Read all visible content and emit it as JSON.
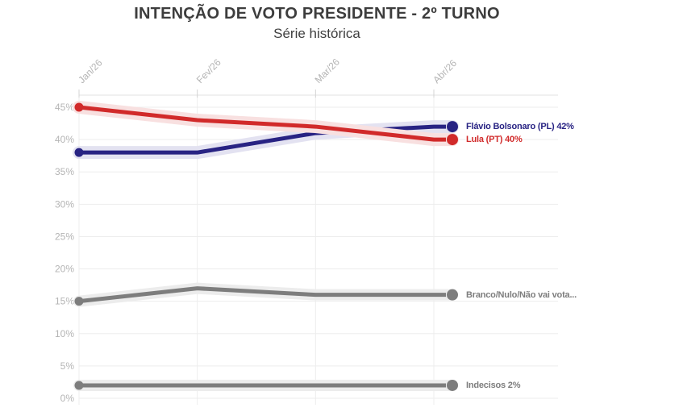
{
  "chart_data": {
    "type": "line",
    "title": "INTENÇÃO DE VOTO PRESIDENTE - 2º TURNO",
    "subtitle": "Série histórica",
    "x": [
      "Jan/26",
      "Fev/26",
      "Mar/26",
      "Abr/26"
    ],
    "y_axis": {
      "min": 0,
      "max": 45,
      "step": 5,
      "tick_labels": [
        "0%",
        "5%",
        "10%",
        "15%",
        "20%",
        "25%",
        "30%",
        "35%",
        "40%",
        "45%"
      ]
    },
    "grid": true,
    "legend_position": "end-of-line",
    "x_axis_position": "top",
    "series": [
      {
        "name": "Flávio Bolsonaro (PL)",
        "values": [
          38,
          38,
          41,
          42
        ],
        "end_value": 42,
        "end_label": "Flávio Bolsonaro (PL) 42%",
        "color": "#282383",
        "band_color": "#e3e2f1"
      },
      {
        "name": "Lula (PT)",
        "values": [
          45,
          43,
          42,
          40
        ],
        "end_value": 40,
        "end_label": "Lula (PT) 40%",
        "color": "#d12a2a",
        "band_color": "#f8e0e0"
      },
      {
        "name": "Branco/Nulo/Não vai votar",
        "values": [
          15,
          17,
          16,
          16
        ],
        "end_value": 16,
        "end_label": "Branco/Nulo/Não vai vota...",
        "color": "#7d7d7d",
        "band_color": "#ececec"
      },
      {
        "name": "Indecisos",
        "values": [
          2,
          2,
          2,
          2
        ],
        "end_value": 2,
        "end_label": "Indecisos 2%",
        "color": "#7d7d7d",
        "band_color": "#ececec"
      }
    ],
    "colors": {
      "grid": "#ededed",
      "axis_line": "#e0e0e0",
      "tick": "#d4d4d4",
      "tick_label": "#b4b4b4",
      "title_text": "#3d3d3d"
    }
  }
}
